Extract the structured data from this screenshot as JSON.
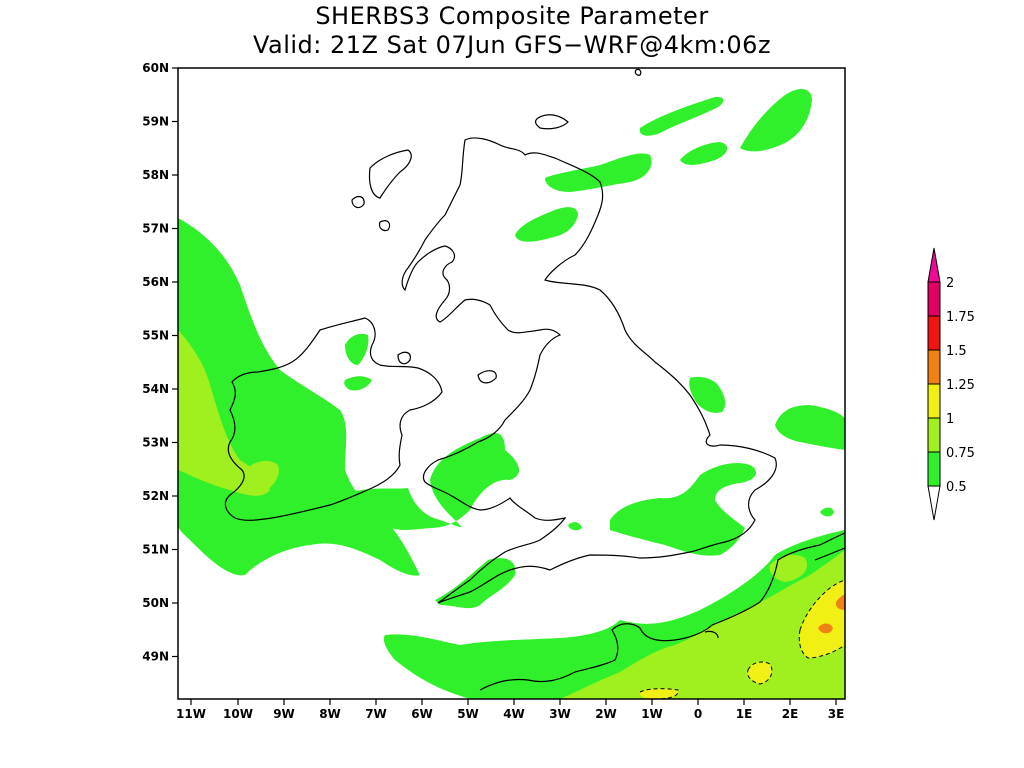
{
  "title": {
    "line1": "SHERBS3 Composite Parameter",
    "line2": "Valid: 21Z Sat 07Jun GFS−WRF@4km:06z"
  },
  "map": {
    "lat_labels": [
      "60N",
      "59N",
      "58N",
      "57N",
      "56N",
      "55N",
      "54N",
      "53N",
      "52N",
      "51N",
      "50N",
      "49N"
    ],
    "lon_labels": [
      "11W",
      "10W",
      "9W",
      "8W",
      "7W",
      "6W",
      "5W",
      "4W",
      "3W",
      "2W",
      "1W",
      "0",
      "1E",
      "2E",
      "3E"
    ]
  },
  "colorbar": {
    "labels": [
      "2",
      "1.75",
      "1.5",
      "1.25",
      "1",
      "0.75",
      "0.5"
    ],
    "colors": {
      "above_2": "#f00a96",
      "1.75-2": "#e00064",
      "1.5-1.75": "#f01414",
      "1.25-1.5": "#f08214",
      "1-1.25": "#f0f014",
      "0.75-1": "#9ff01e",
      "0.5-0.75": "#2ff02a",
      "below_0.5": "#ffffff"
    }
  }
}
